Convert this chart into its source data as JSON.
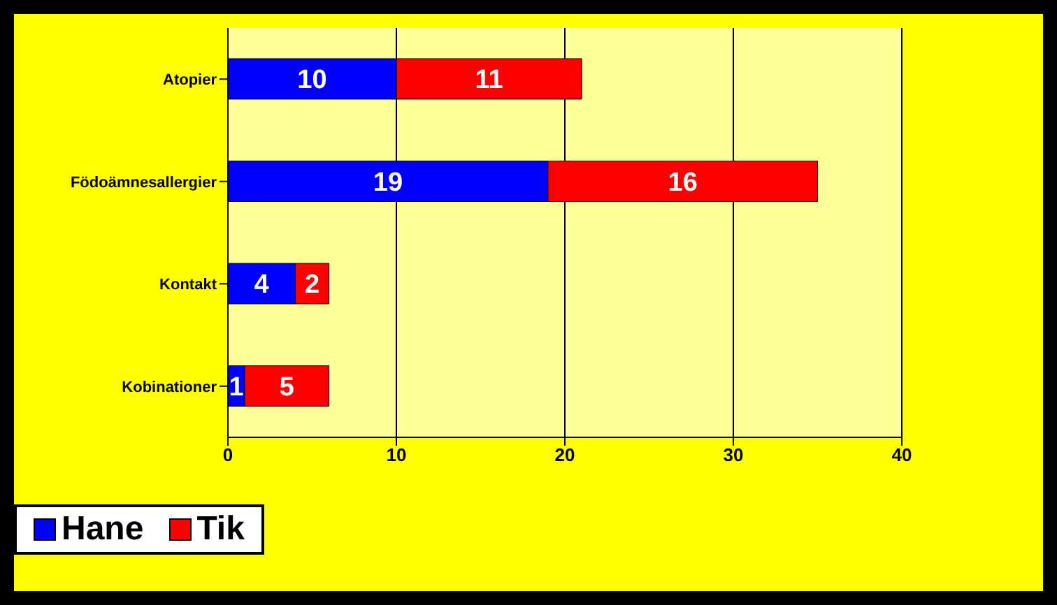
{
  "chart_data": {
    "type": "bar",
    "orientation": "horizontal",
    "stacked": true,
    "categories": [
      "Atopier",
      "Födoämnesallergier",
      "Kontakt",
      "Kobinationer"
    ],
    "series": [
      {
        "name": "Hane",
        "color": "#0000ff",
        "values": [
          10,
          19,
          4,
          1
        ]
      },
      {
        "name": "Tik",
        "color": "#ff0000",
        "values": [
          11,
          16,
          2,
          5
        ]
      }
    ],
    "xlim": [
      0,
      40
    ],
    "xticks": [
      0,
      10,
      20,
      30,
      40
    ],
    "grid": "x",
    "legend": "bottom",
    "data_labels": true
  }
}
